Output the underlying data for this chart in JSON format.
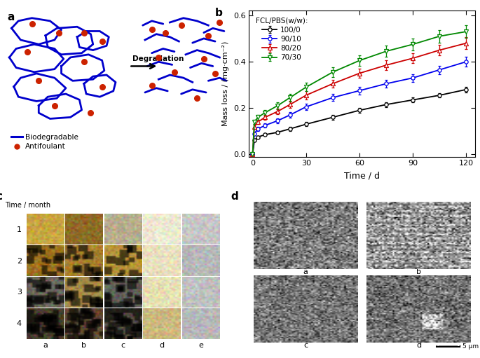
{
  "panel_b": {
    "title": "b",
    "xlabel": "Time / d",
    "ylabel": "Mass loss / (mg·cm⁻²)",
    "xlim": [
      -2,
      125
    ],
    "ylim": [
      -0.01,
      0.62
    ],
    "xticks": [
      0,
      30,
      60,
      90,
      120
    ],
    "yticks": [
      0.0,
      0.2,
      0.4,
      0.6
    ],
    "legend_title": "FCL/PBS(w/w):",
    "series": [
      {
        "label": "100/0",
        "color": "#000000",
        "marker": "o",
        "x": [
          0,
          1,
          3,
          7,
          14,
          21,
          30,
          45,
          60,
          75,
          90,
          105,
          120
        ],
        "y": [
          0.0,
          0.06,
          0.075,
          0.085,
          0.095,
          0.11,
          0.13,
          0.16,
          0.19,
          0.215,
          0.235,
          0.255,
          0.28
        ],
        "yerr": [
          0,
          0.004,
          0.005,
          0.006,
          0.007,
          0.008,
          0.009,
          0.01,
          0.01,
          0.01,
          0.01,
          0.01,
          0.012
        ]
      },
      {
        "label": "90/10",
        "color": "#0000EE",
        "marker": "o",
        "x": [
          0,
          1,
          3,
          7,
          14,
          21,
          30,
          45,
          60,
          75,
          90,
          105,
          120
        ],
        "y": [
          0.0,
          0.09,
          0.11,
          0.125,
          0.145,
          0.17,
          0.205,
          0.245,
          0.275,
          0.305,
          0.33,
          0.365,
          0.4
        ],
        "yerr": [
          0,
          0.006,
          0.008,
          0.009,
          0.011,
          0.013,
          0.014,
          0.015,
          0.016,
          0.017,
          0.017,
          0.018,
          0.02
        ]
      },
      {
        "label": "80/20",
        "color": "#CC0000",
        "marker": "^",
        "x": [
          0,
          1,
          3,
          7,
          14,
          21,
          30,
          45,
          60,
          75,
          90,
          105,
          120
        ],
        "y": [
          0.0,
          0.12,
          0.14,
          0.16,
          0.185,
          0.215,
          0.255,
          0.305,
          0.35,
          0.385,
          0.415,
          0.45,
          0.48
        ],
        "yerr": [
          0,
          0.008,
          0.01,
          0.011,
          0.013,
          0.015,
          0.017,
          0.018,
          0.02,
          0.021,
          0.022,
          0.023,
          0.025
        ]
      },
      {
        "label": "70/30",
        "color": "#008800",
        "marker": "v",
        "x": [
          0,
          1,
          3,
          7,
          14,
          21,
          30,
          45,
          60,
          75,
          90,
          105,
          120
        ],
        "y": [
          0.0,
          0.14,
          0.16,
          0.18,
          0.21,
          0.245,
          0.29,
          0.355,
          0.405,
          0.445,
          0.475,
          0.51,
          0.53
        ],
        "yerr": [
          0,
          0.009,
          0.011,
          0.012,
          0.014,
          0.016,
          0.018,
          0.021,
          0.023,
          0.025,
          0.026,
          0.027,
          0.028
        ]
      }
    ]
  },
  "blob_blue": "#0000CC",
  "antifoul_red": "#CC2200",
  "figure_bg": "#ffffff"
}
